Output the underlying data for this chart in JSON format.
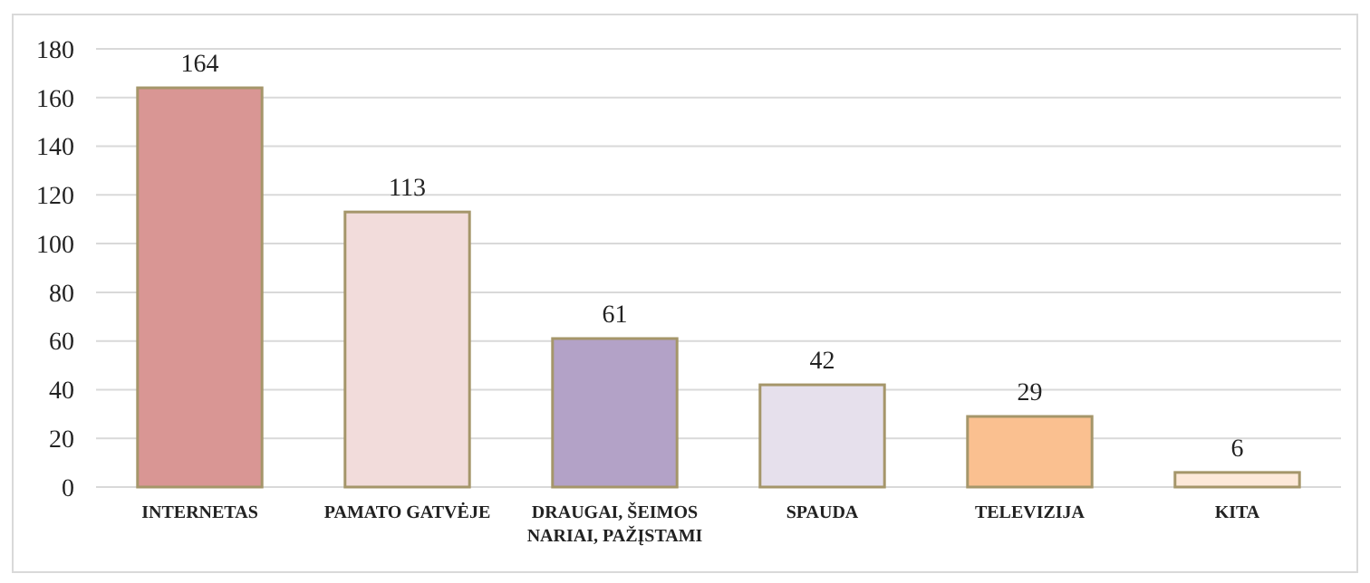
{
  "chart_data": {
    "type": "bar",
    "categories": [
      "INTERNETAS",
      "PAMATO GATVĖJE",
      "DRAUGAI, ŠEIMOS NARIAI, PAŽĮSTAMI",
      "SPAUDA",
      "TELEVIZIJA",
      "KITA"
    ],
    "values": [
      164,
      113,
      61,
      42,
      29,
      6
    ],
    "colors": [
      "#d99694",
      "#f2dcdb",
      "#b3a2c7",
      "#e6e0ec",
      "#fac090",
      "#fde9d9"
    ],
    "ylim": [
      0,
      180
    ],
    "yticks": [
      0,
      20,
      40,
      60,
      80,
      100,
      120,
      140,
      160,
      180
    ],
    "grid": "y",
    "data_labels": true
  }
}
